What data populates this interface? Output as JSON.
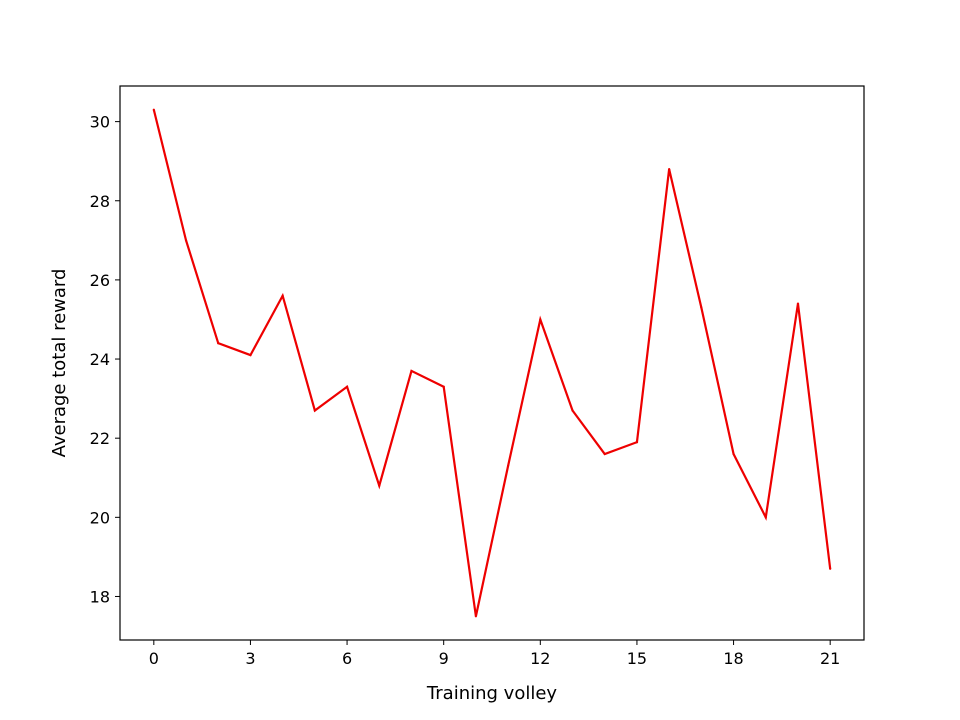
{
  "chart_data": {
    "type": "line",
    "title": "",
    "xlabel": "Training volley",
    "ylabel": "Average total reward",
    "xlim": [
      -1.05,
      22.05
    ],
    "ylim": [
      16.9,
      30.9
    ],
    "xticks": [
      0,
      3,
      6,
      9,
      12,
      15,
      18,
      21
    ],
    "yticks": [
      18,
      20,
      22,
      24,
      26,
      28,
      30
    ],
    "grid": false,
    "legend": "none",
    "series": [
      {
        "color": "#ee0000",
        "x": [
          0,
          1,
          2,
          3,
          4,
          5,
          6,
          7,
          8,
          9,
          10,
          11,
          12,
          13,
          14,
          15,
          16,
          17,
          18,
          19,
          20,
          21
        ],
        "y": [
          30.3,
          27.0,
          24.4,
          24.1,
          25.6,
          22.7,
          23.3,
          20.8,
          23.7,
          23.3,
          17.5,
          21.3,
          25.0,
          22.7,
          21.6,
          21.9,
          28.8,
          25.3,
          21.6,
          20.0,
          25.4,
          18.7
        ]
      }
    ]
  }
}
